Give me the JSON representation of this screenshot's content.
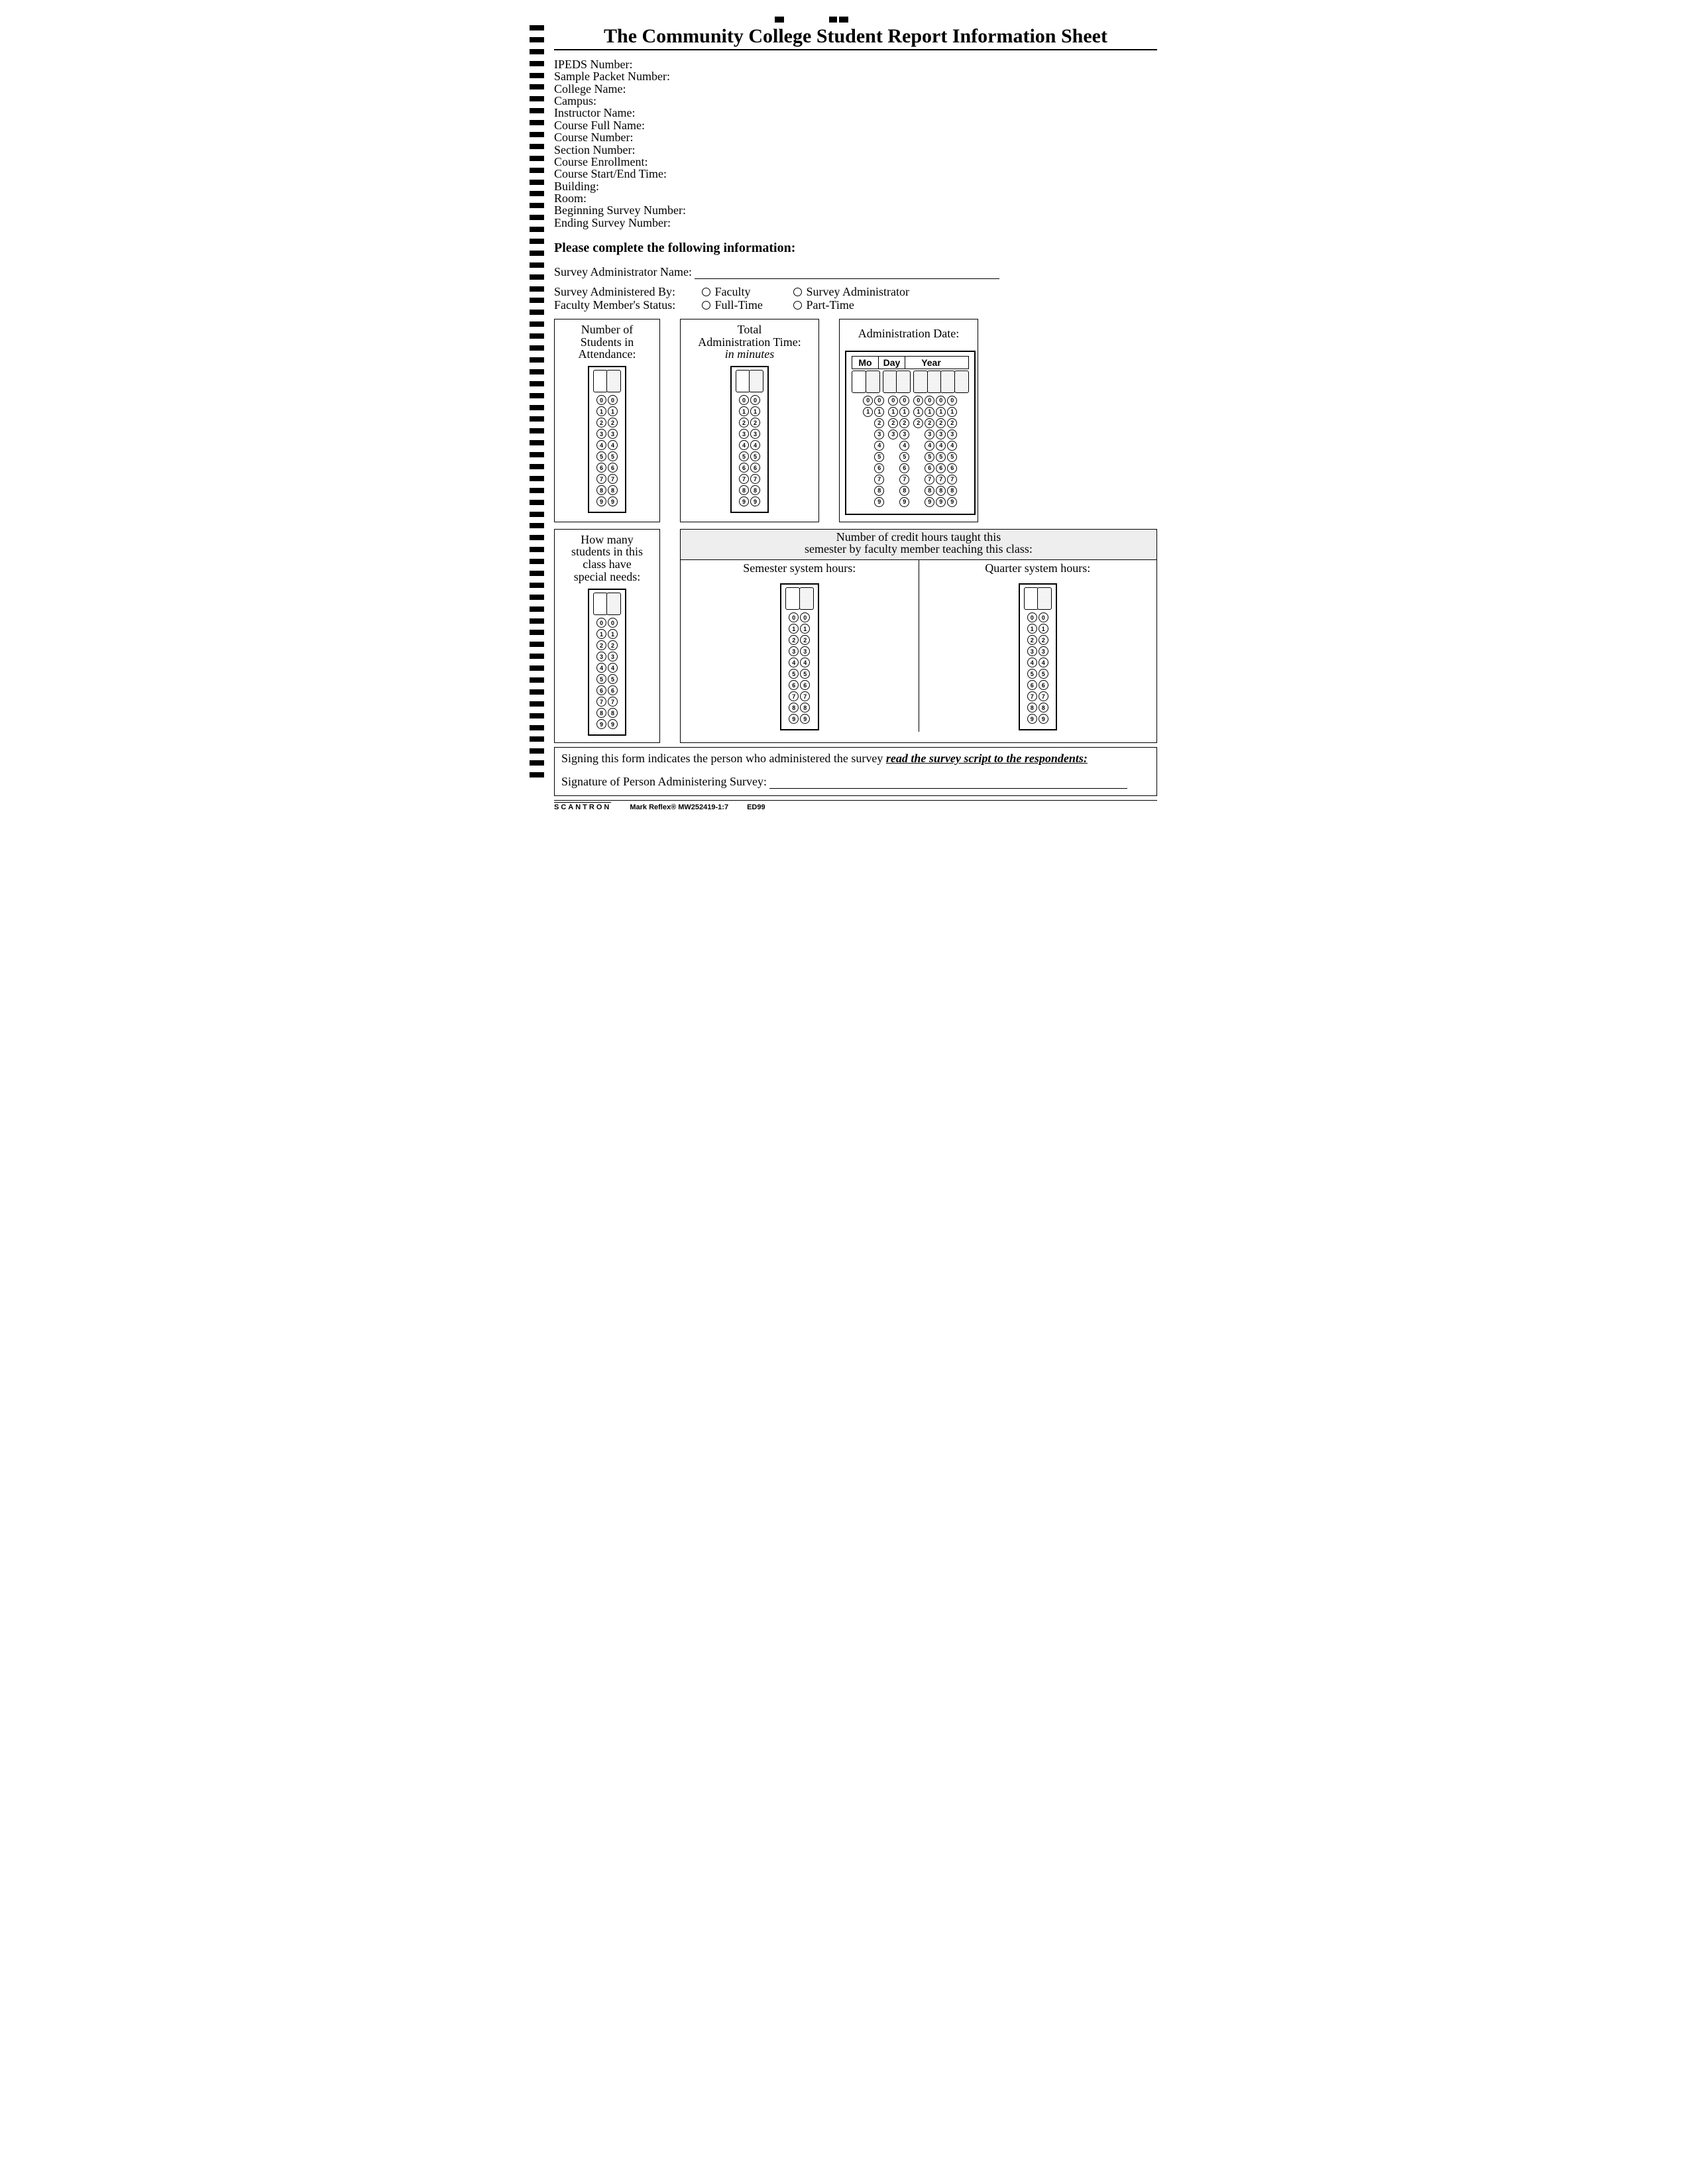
{
  "title": "The Community College Student Report Information Sheet",
  "fields": [
    "IPEDS Number:",
    "Sample Packet Number:",
    "College Name:",
    "Campus:",
    "Instructor Name:",
    "Course Full Name:",
    "Course Number:",
    "Section Number:",
    "Course Enrollment:",
    "Course Start/End Time:",
    "Building:",
    "Room:",
    "Beginning Survey Number:",
    "Ending Survey Number:"
  ],
  "instruction": "Please complete the following information:",
  "survey_admin_name_label": "Survey Administrator Name:",
  "administered_by": {
    "label": "Survey Administered By:",
    "options": [
      "Faculty",
      "Survey Administrator"
    ]
  },
  "faculty_status": {
    "label": "Faculty Member's Status:",
    "options": [
      "Full-Time",
      "Part-Time"
    ]
  },
  "panels": {
    "attendance": {
      "title_l1": "Number of",
      "title_l2": "Students in",
      "title_l3": "Attendance:",
      "columns": 2,
      "digits": [
        0,
        1,
        2,
        3,
        4,
        5,
        6,
        7,
        8,
        9
      ]
    },
    "admin_time": {
      "title_l1": "Total",
      "title_l2": "Administration Time:",
      "title_em": "in minutes",
      "columns": 2,
      "digits": [
        0,
        1,
        2,
        3,
        4,
        5,
        6,
        7,
        8,
        9
      ]
    },
    "admin_date": {
      "title": "Administration Date:",
      "headers": [
        "Mo",
        "Day",
        "Year"
      ],
      "header_widths": [
        40,
        40,
        78
      ],
      "month": {
        "cols": 2,
        "max": [
          1,
          9
        ]
      },
      "day": {
        "cols": 2,
        "max": [
          3,
          9
        ]
      },
      "year": {
        "cols": 4,
        "max": [
          2,
          9,
          9,
          9
        ]
      }
    },
    "special_needs": {
      "title_l1": "How many",
      "title_l2": "students in this",
      "title_l3": "class have",
      "title_l4": "special needs:",
      "columns": 2,
      "digits": [
        0,
        1,
        2,
        3,
        4,
        5,
        6,
        7,
        8,
        9
      ]
    },
    "credit_hours": {
      "strip_l1": "Number of credit hours taught this",
      "strip_l2": "semester by faculty member teaching this class:",
      "semester_label": "Semester system hours:",
      "quarter_label": "Quarter system hours:",
      "columns": 2,
      "digits": [
        0,
        1,
        2,
        3,
        4,
        5,
        6,
        7,
        8,
        9
      ]
    }
  },
  "footer": {
    "cert_prefix": "Signing this form indicates the person who administered the survey ",
    "cert_em": "read the survey script to the respondents:",
    "sig_label": "Signature of Person Administering Survey:"
  },
  "print": {
    "brand": "SCANTRON",
    "code": "Mark Reflex® MW252419-1:7",
    "form": "ED99"
  }
}
